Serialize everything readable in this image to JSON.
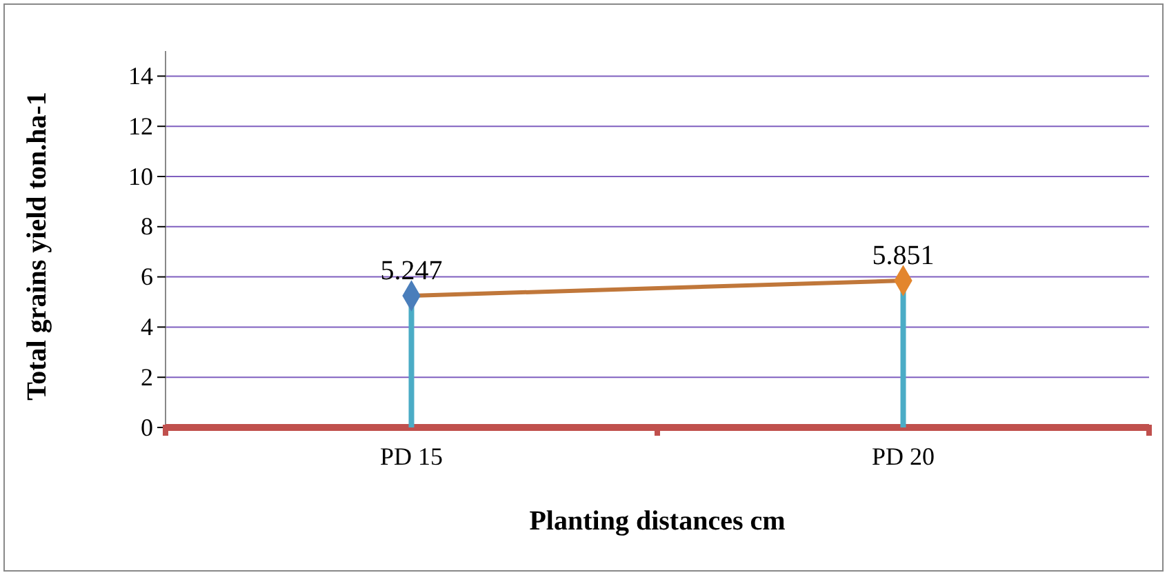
{
  "chart_data": {
    "type": "line",
    "xlabel": "Planting distances cm",
    "ylabel": "Total grains yield ton.ha-1",
    "categories": [
      "PD 15",
      "PD 20"
    ],
    "series": [
      {
        "color": "#c0773a",
        "colors": [
          "#4a7ebb",
          "#e3862d"
        ],
        "values": [
          5.247,
          5.851
        ]
      }
    ],
    "marker": "diamond",
    "ylim": [
      0,
      15
    ],
    "yticks": [
      0,
      2,
      4,
      6,
      8,
      10,
      12,
      14
    ],
    "grid": "y",
    "data_labels": true
  }
}
